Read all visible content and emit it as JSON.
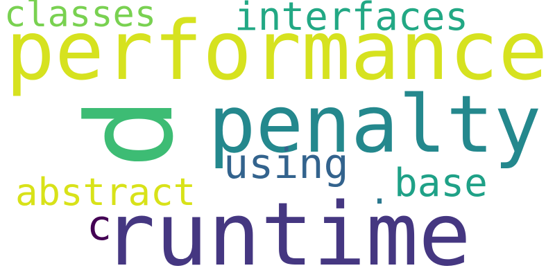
{
  "words": [
    {
      "text": "performance",
      "color": "#d6e21f"
    },
    {
      "text": "classes",
      "color": "#79d151"
    },
    {
      "text": "interfaces",
      "color": "#22a884"
    },
    {
      "text": "penalty",
      "color": "#24888d"
    },
    {
      "text": "p",
      "color": "#3dbc74"
    },
    {
      "text": "using",
      "color": "#33638d"
    },
    {
      "text": ".",
      "color": "#2a788e"
    },
    {
      "text": "base",
      "color": "#1fa187"
    },
    {
      "text": "abstract",
      "color": "#d8e219"
    },
    {
      "text": "c",
      "color": "#440154"
    },
    {
      "text": "runtime",
      "color": "#453781"
    }
  ]
}
